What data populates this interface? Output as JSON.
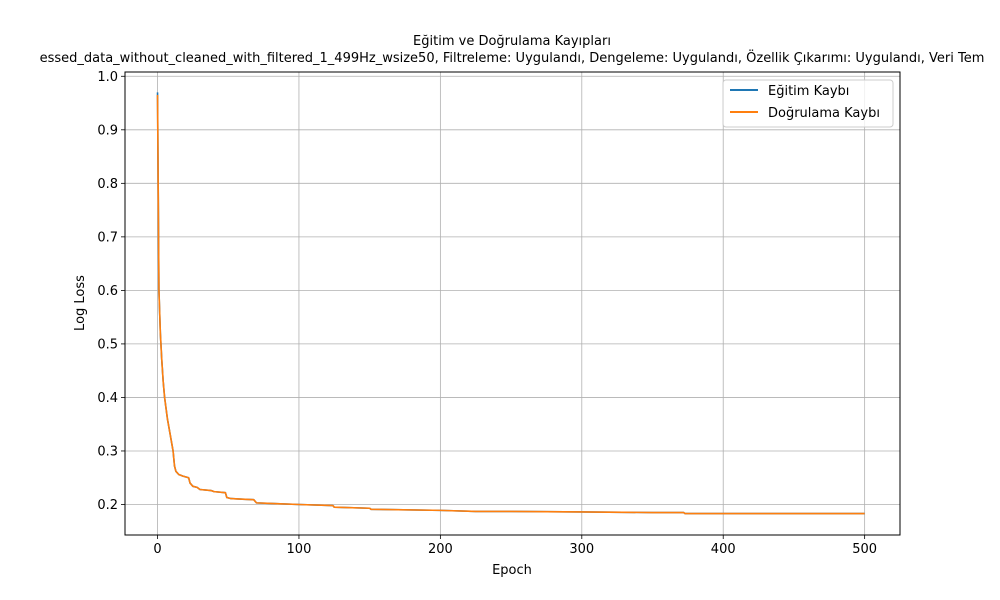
{
  "chart_data": {
    "type": "line",
    "title": "Eğitim ve Doğrulama Kayıpları",
    "subtitle": "essed_data_without_cleaned_with_filtered_1_499Hz_wsize50, Filtreleme: Uygulandı, Dengeleme: Uygulandı, Özellik Çıkarımı: Uygulandı, Veri Tem",
    "xlabel": "Epoch",
    "ylabel": "Log Loss",
    "xlim": [
      -23,
      525
    ],
    "ylim": [
      0.143,
      1.008
    ],
    "xticks": [
      0,
      100,
      200,
      300,
      400,
      500
    ],
    "yticks": [
      0.2,
      0.3,
      0.4,
      0.5,
      0.6,
      0.7,
      0.8,
      0.9,
      1.0
    ],
    "ytick_labels": [
      "0.2",
      "0.3",
      "0.4",
      "0.5",
      "0.6",
      "0.7",
      "0.8",
      "0.9",
      "1.0"
    ],
    "grid": true,
    "legend_position": "top-right",
    "series": [
      {
        "name": "Eğitim Kaybı",
        "color": "#1f77b4",
        "points": [
          [
            0,
            0.97
          ],
          [
            1,
            0.6
          ],
          [
            2,
            0.52
          ],
          [
            3,
            0.47
          ],
          [
            4,
            0.43
          ],
          [
            5,
            0.4
          ],
          [
            6,
            0.38
          ],
          [
            7,
            0.36
          ],
          [
            8,
            0.345
          ],
          [
            9,
            0.33
          ],
          [
            10,
            0.315
          ],
          [
            11,
            0.3
          ],
          [
            12,
            0.272
          ],
          [
            13,
            0.262
          ],
          [
            15,
            0.256
          ],
          [
            18,
            0.253
          ],
          [
            22,
            0.25
          ],
          [
            23,
            0.24
          ],
          [
            25,
            0.234
          ],
          [
            28,
            0.232
          ],
          [
            30,
            0.228
          ],
          [
            38,
            0.226
          ],
          [
            40,
            0.224
          ],
          [
            48,
            0.222
          ],
          [
            49,
            0.213
          ],
          [
            52,
            0.211
          ],
          [
            60,
            0.21
          ],
          [
            68,
            0.209
          ],
          [
            70,
            0.203
          ],
          [
            80,
            0.202
          ],
          [
            100,
            0.2
          ],
          [
            124,
            0.198
          ],
          [
            125,
            0.195
          ],
          [
            150,
            0.193
          ],
          [
            151,
            0.191
          ],
          [
            200,
            0.189
          ],
          [
            225,
            0.187
          ],
          [
            250,
            0.187
          ],
          [
            300,
            0.186
          ],
          [
            350,
            0.185
          ],
          [
            372,
            0.185
          ],
          [
            373,
            0.183
          ],
          [
            400,
            0.183
          ],
          [
            450,
            0.183
          ],
          [
            500,
            0.183
          ]
        ]
      },
      {
        "name": "Doğrulama Kaybı",
        "color": "#ff7f0e",
        "points": [
          [
            0,
            0.965
          ],
          [
            1,
            0.6
          ],
          [
            2,
            0.52
          ],
          [
            3,
            0.47
          ],
          [
            4,
            0.43
          ],
          [
            5,
            0.4
          ],
          [
            6,
            0.38
          ],
          [
            7,
            0.36
          ],
          [
            8,
            0.345
          ],
          [
            9,
            0.33
          ],
          [
            10,
            0.315
          ],
          [
            11,
            0.3
          ],
          [
            12,
            0.272
          ],
          [
            13,
            0.262
          ],
          [
            15,
            0.256
          ],
          [
            18,
            0.253
          ],
          [
            22,
            0.25
          ],
          [
            23,
            0.24
          ],
          [
            25,
            0.234
          ],
          [
            28,
            0.232
          ],
          [
            30,
            0.228
          ],
          [
            38,
            0.226
          ],
          [
            40,
            0.224
          ],
          [
            48,
            0.222
          ],
          [
            49,
            0.213
          ],
          [
            52,
            0.211
          ],
          [
            60,
            0.21
          ],
          [
            68,
            0.209
          ],
          [
            70,
            0.203
          ],
          [
            80,
            0.202
          ],
          [
            100,
            0.2
          ],
          [
            124,
            0.198
          ],
          [
            125,
            0.195
          ],
          [
            150,
            0.193
          ],
          [
            151,
            0.191
          ],
          [
            200,
            0.189
          ],
          [
            225,
            0.187
          ],
          [
            250,
            0.187
          ],
          [
            300,
            0.186
          ],
          [
            350,
            0.185
          ],
          [
            372,
            0.185
          ],
          [
            373,
            0.183
          ],
          [
            400,
            0.183
          ],
          [
            450,
            0.183
          ],
          [
            500,
            0.183
          ]
        ]
      }
    ]
  }
}
